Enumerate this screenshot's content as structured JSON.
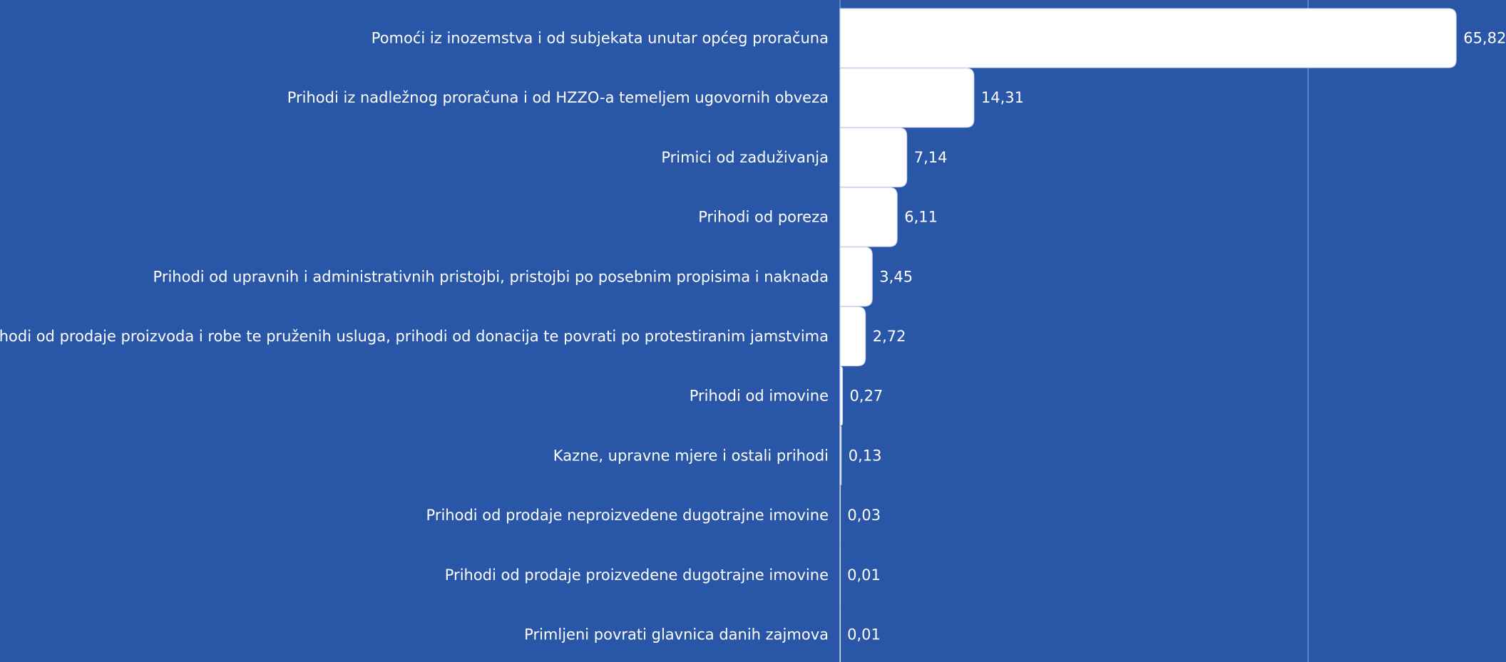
{
  "chart_data": {
    "type": "bar",
    "orientation": "horizontal",
    "categories": [
      "Pomoći iz inozemstva i od subjekata unutar općeg proračuna",
      "Prihodi iz nadležnog proračuna i od HZZO-a temeljem ugovornih obveza",
      "Primici od zaduživanja",
      "Prihodi od poreza",
      "Prihodi od upravnih i administrativnih pristojbi, pristojbi po posebnim propisima i naknada",
      "Prihodi od prodaje proizvoda i robe te pruženih usluga, prihodi od donacija te povrati po protestiranim jamstvima",
      "Prihodi od imovine",
      "Kazne, upravne mjere i ostali prihodi",
      "Prihodi od prodaje neproizvedene dugotrajne imovine",
      "Prihodi od prodaje proizvedene dugotrajne imovine",
      "Primljeni povrati glavnica danih zajmova"
    ],
    "values": [
      65.82,
      14.31,
      7.14,
      6.11,
      3.45,
      2.72,
      0.27,
      0.13,
      0.03,
      0.01,
      0.01
    ],
    "value_labels": [
      "65,82",
      "14,31",
      "7,14",
      "6,11",
      "3,45",
      "2,72",
      "0,27",
      "0,13",
      "0,03",
      "0,01",
      "0,01"
    ],
    "xlim": [
      0,
      71
    ],
    "gridlines_at": [
      0,
      50
    ],
    "legend": "none",
    "colors": {
      "background": "#2a56a8",
      "bar": "#ffffff",
      "text": "#ffffff",
      "gridline": "#6f8fcc"
    }
  }
}
